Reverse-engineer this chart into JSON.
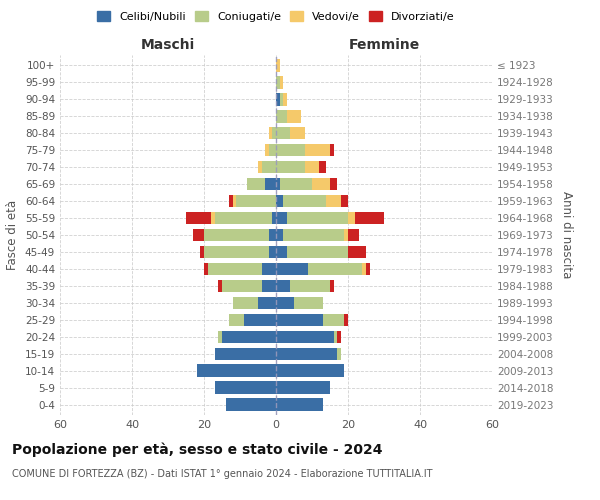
{
  "age_groups": [
    "0-4",
    "5-9",
    "10-14",
    "15-19",
    "20-24",
    "25-29",
    "30-34",
    "35-39",
    "40-44",
    "45-49",
    "50-54",
    "55-59",
    "60-64",
    "65-69",
    "70-74",
    "75-79",
    "80-84",
    "85-89",
    "90-94",
    "95-99",
    "100+"
  ],
  "birth_years": [
    "2019-2023",
    "2014-2018",
    "2009-2013",
    "2004-2008",
    "1999-2003",
    "1994-1998",
    "1989-1993",
    "1984-1988",
    "1979-1983",
    "1974-1978",
    "1969-1973",
    "1964-1968",
    "1959-1963",
    "1954-1958",
    "1949-1953",
    "1944-1948",
    "1939-1943",
    "1934-1938",
    "1929-1933",
    "1924-1928",
    "≤ 1923"
  ],
  "males": {
    "celibi": [
      14,
      17,
      22,
      17,
      15,
      9,
      5,
      4,
      4,
      2,
      2,
      1,
      0,
      3,
      0,
      0,
      0,
      0,
      0,
      0,
      0
    ],
    "coniugati": [
      0,
      0,
      0,
      0,
      1,
      4,
      7,
      11,
      15,
      18,
      18,
      16,
      11,
      5,
      4,
      2,
      1,
      0,
      0,
      0,
      0
    ],
    "vedovi": [
      0,
      0,
      0,
      0,
      0,
      0,
      0,
      0,
      0,
      0,
      0,
      1,
      1,
      0,
      1,
      1,
      1,
      0,
      0,
      0,
      0
    ],
    "divorziati": [
      0,
      0,
      0,
      0,
      0,
      0,
      0,
      1,
      1,
      1,
      3,
      7,
      1,
      0,
      0,
      0,
      0,
      0,
      0,
      0,
      0
    ]
  },
  "females": {
    "nubili": [
      13,
      15,
      19,
      17,
      16,
      13,
      5,
      4,
      9,
      3,
      2,
      3,
      2,
      1,
      0,
      0,
      0,
      0,
      1,
      0,
      0
    ],
    "coniugate": [
      0,
      0,
      0,
      1,
      1,
      6,
      8,
      11,
      15,
      17,
      17,
      17,
      12,
      9,
      8,
      8,
      4,
      3,
      1,
      1,
      0
    ],
    "vedove": [
      0,
      0,
      0,
      0,
      0,
      0,
      0,
      0,
      1,
      0,
      1,
      2,
      4,
      5,
      4,
      7,
      4,
      4,
      1,
      1,
      1
    ],
    "divorziate": [
      0,
      0,
      0,
      0,
      1,
      1,
      0,
      1,
      1,
      5,
      3,
      8,
      2,
      2,
      2,
      1,
      0,
      0,
      0,
      0,
      0
    ]
  },
  "colors": {
    "celibi": "#3a6ea5",
    "coniugati": "#b8cc8a",
    "vedovi": "#f5c96a",
    "divorziati": "#cc2222"
  },
  "title": "Popolazione per età, sesso e stato civile - 2024",
  "subtitle": "COMUNE DI FORTEZZA (BZ) - Dati ISTAT 1° gennaio 2024 - Elaborazione TUTTITALIA.IT",
  "xlabel_left": "Maschi",
  "xlabel_right": "Femmine",
  "ylabel_left": "Fasce di età",
  "ylabel_right": "Anni di nascita",
  "xlim": 60,
  "legend_labels": [
    "Celibi/Nubili",
    "Coniugati/e",
    "Vedovi/e",
    "Divorziati/e"
  ],
  "background_color": "#ffffff",
  "grid_color": "#cccccc",
  "bar_height": 0.75
}
